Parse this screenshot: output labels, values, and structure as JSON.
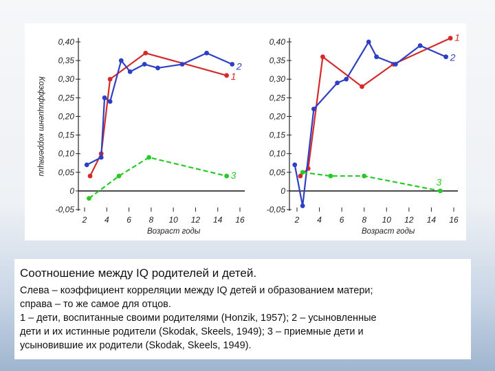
{
  "chart_data": [
    {
      "type": "line",
      "panel": "left",
      "ylabel": "Коэффициент корреляции",
      "xlabel": "Возраст годы",
      "xlim": [
        2,
        16
      ],
      "ylim": [
        -0.05,
        0.4
      ],
      "x_ticks": [
        "2",
        "4",
        "6",
        "8",
        "10",
        "12",
        "14",
        "16"
      ],
      "y_ticks": [
        "0,40",
        "0,35",
        "0,30",
        "0,25",
        "0,20",
        "0,15",
        "0,10",
        "0,05",
        "0",
        "-0,05"
      ],
      "series": [
        {
          "name": "1",
          "color": "#d62a2a",
          "points": [
            [
              2.5,
              0.04
            ],
            [
              3.5,
              0.1
            ],
            [
              4.3,
              0.3
            ],
            [
              7.5,
              0.37
            ],
            [
              14.8,
              0.31
            ]
          ]
        },
        {
          "name": "2",
          "color": "#2d3fc4",
          "points": [
            [
              2.2,
              0.07
            ],
            [
              3.5,
              0.09
            ],
            [
              3.8,
              0.25
            ],
            [
              4.3,
              0.24
            ],
            [
              5.3,
              0.35
            ],
            [
              6.1,
              0.32
            ],
            [
              7.4,
              0.34
            ],
            [
              8.6,
              0.33
            ],
            [
              10.8,
              0.34
            ],
            [
              13,
              0.37
            ],
            [
              15.3,
              0.34
            ]
          ]
        },
        {
          "name": "3",
          "color": "#27c927",
          "points": [
            [
              2.4,
              -0.02
            ],
            [
              5.1,
              0.04
            ],
            [
              7.8,
              0.09
            ],
            [
              14.8,
              0.04
            ]
          ]
        }
      ]
    },
    {
      "type": "line",
      "panel": "right",
      "ylabel": "",
      "xlabel": "Возраст годы",
      "xlim": [
        2,
        16
      ],
      "ylim": [
        -0.05,
        0.4
      ],
      "x_ticks": [
        "2",
        "4",
        "6",
        "8",
        "10",
        "12",
        "14",
        "16"
      ],
      "y_ticks": [
        "0,40",
        "0,35",
        "0,30",
        "0,25",
        "0,20",
        "0,15",
        "0,10",
        "0,05",
        "0",
        "-0,05"
      ],
      "series": [
        {
          "name": "1",
          "color": "#d62a2a",
          "points": [
            [
              2.3,
              0.04
            ],
            [
              3,
              0.06
            ],
            [
              4.3,
              0.36
            ],
            [
              7.8,
              0.28
            ],
            [
              10.6,
              0.34
            ],
            [
              15.7,
              0.41
            ]
          ]
        },
        {
          "name": "2",
          "color": "#2d3fc4",
          "points": [
            [
              1.8,
              0.07
            ],
            [
              2.5,
              -0.04
            ],
            [
              3.5,
              0.22
            ],
            [
              5.6,
              0.29
            ],
            [
              6.4,
              0.3
            ],
            [
              8.4,
              0.4
            ],
            [
              9.1,
              0.36
            ],
            [
              10.8,
              0.34
            ],
            [
              13,
              0.39
            ],
            [
              15.3,
              0.36
            ]
          ]
        },
        {
          "name": "3",
          "color": "#27c927",
          "points": [
            [
              2.5,
              0.05
            ],
            [
              5,
              0.04
            ],
            [
              8,
              0.04
            ],
            [
              14.8,
              0.0
            ]
          ]
        }
      ]
    }
  ],
  "caption": {
    "title": "Соотношение между IQ родителей и детей.",
    "lines": [
      "Слева – коэффициент корреляции между IQ детей и образованием матери;",
      "справа – то же самое для отцов.",
      "1 – дети, воспитанные своими родителями (Honzik, 1957); 2 – усыновленные",
      "дети и их истинные родители (Skodak, Skeels, 1949); 3 – приемные дети и",
      "усыновившие их родители (Skodak, Skeels, 1949)."
    ]
  }
}
